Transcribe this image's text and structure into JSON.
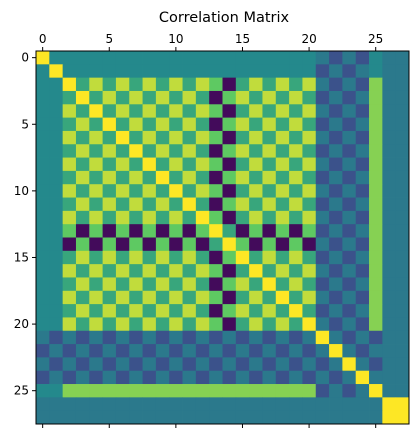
{
  "chart_data": {
    "type": "heatmap",
    "title": "Correlation Matrix",
    "xlabel": "",
    "ylabel": "",
    "n": 28,
    "colormap": "viridis",
    "axis_ticks": [
      0,
      5,
      10,
      15,
      20,
      25
    ],
    "x_ticks_position": "top",
    "grid": false,
    "colorbar": false,
    "structure": {
      "checker_block": "rows/cols 2-20: alternating values around 0.85 and 0.35, with column 13-14 strongly negative",
      "low_block": "rows/cols 21-24 weakly negative against the checker block",
      "isolated": "rows/cols 26-27 near zero except self"
    }
  }
}
